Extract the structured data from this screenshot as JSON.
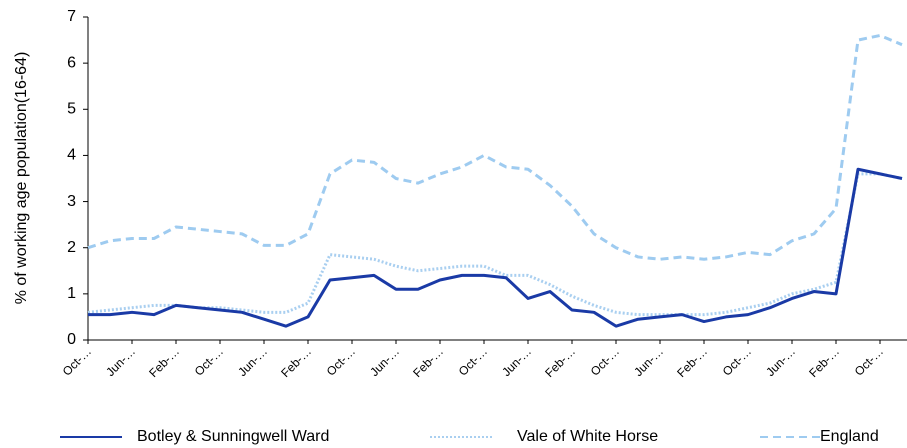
{
  "chart_data": {
    "type": "line",
    "y_label": "% of working age population(16-64)",
    "categories": [
      "Oct-…",
      null,
      "Jun-…",
      null,
      "Feb-…",
      null,
      "Oct-…",
      null,
      "Jun-…",
      null,
      "Feb-…",
      null,
      "Oct-…",
      null,
      "Jun-…",
      null,
      "Feb-…",
      null,
      "Oct-…",
      null,
      "Jun-…",
      null,
      "Feb-…",
      null,
      "Oct-…",
      null,
      "Jun-…",
      null,
      "Feb-…",
      null,
      "Oct-…",
      null,
      "Jun-…",
      null,
      "Feb-…",
      null,
      "Oct-…",
      null
    ],
    "series": [
      {
        "name": "Botley & Sunningwell Ward",
        "color": "#1a3aa6",
        "style": "solid",
        "values": [
          0.55,
          0.55,
          0.6,
          0.55,
          0.75,
          0.7,
          0.65,
          0.6,
          0.45,
          0.3,
          0.5,
          1.3,
          1.35,
          1.4,
          1.1,
          1.1,
          1.3,
          1.4,
          1.4,
          1.35,
          0.9,
          1.05,
          0.65,
          0.6,
          0.3,
          0.45,
          0.5,
          0.55,
          0.4,
          0.5,
          0.55,
          0.7,
          0.9,
          1.05,
          1.0,
          3.7,
          3.6,
          3.5
        ]
      },
      {
        "name": "Vale of White Horse",
        "color": "#a9cff0",
        "style": "dotted",
        "values": [
          0.6,
          0.65,
          0.7,
          0.75,
          0.75,
          0.7,
          0.7,
          0.65,
          0.6,
          0.6,
          0.8,
          1.85,
          1.8,
          1.75,
          1.6,
          1.5,
          1.55,
          1.6,
          1.6,
          1.4,
          1.4,
          1.2,
          0.95,
          0.75,
          0.6,
          0.55,
          0.55,
          0.55,
          0.55,
          0.6,
          0.7,
          0.8,
          1.0,
          1.1,
          1.25,
          3.6,
          3.6,
          3.5
        ]
      },
      {
        "name": "England",
        "color": "#9ecbf0",
        "style": "dashed",
        "values": [
          2.0,
          2.15,
          2.2,
          2.2,
          2.45,
          2.4,
          2.35,
          2.3,
          2.05,
          2.05,
          2.3,
          3.6,
          3.9,
          3.85,
          3.5,
          3.4,
          3.6,
          3.75,
          4.0,
          3.75,
          3.7,
          3.35,
          2.9,
          2.3,
          2.0,
          1.8,
          1.75,
          1.8,
          1.75,
          1.8,
          1.9,
          1.85,
          2.15,
          2.3,
          2.85,
          6.5,
          6.6,
          6.4
        ]
      }
    ],
    "ylim": [
      0,
      7
    ],
    "yticks": [
      0,
      1,
      2,
      3,
      4,
      5,
      6,
      7
    ],
    "grid": false,
    "legend": "bottom"
  }
}
